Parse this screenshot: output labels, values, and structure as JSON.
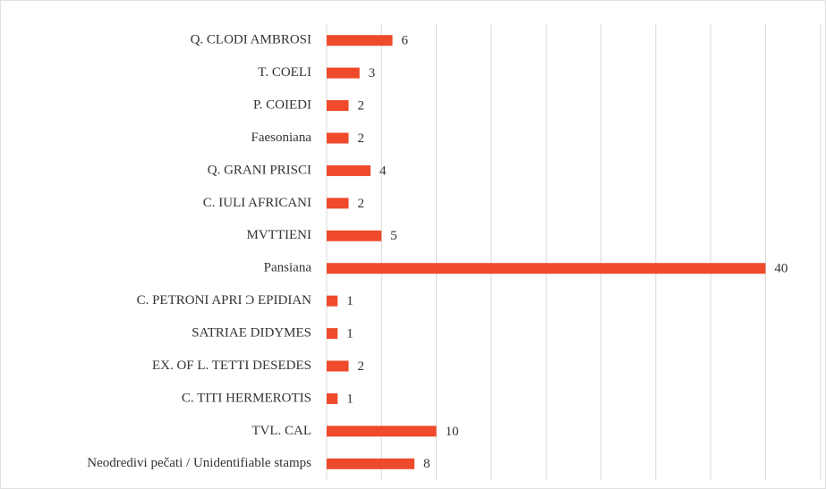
{
  "chart_data": {
    "type": "barh",
    "categories": [
      "Q. CLODI AMBROSI",
      "T. COELI",
      "P. COIEDI",
      "Faesoniana",
      "Q. GRANI PRISCI",
      "C. IULI AFRICANI",
      "MVTTIENI",
      "Pansiana",
      "C. PETRONI APRI Ɔ EPIDIAN",
      "SATRIAE DIDYMES",
      "EX. OF L. TETTI DESEDES",
      "C. TITI HERMEROTIS",
      "TVL. CAL",
      "Neodredivi pečati / Unidentifiable stamps"
    ],
    "values": [
      6,
      3,
      2,
      2,
      4,
      2,
      5,
      40,
      1,
      1,
      2,
      1,
      10,
      8
    ],
    "color": "#ee4a2b",
    "xlim": [
      0,
      45
    ],
    "xticks": [
      0,
      5,
      10,
      15,
      20,
      25,
      30,
      35,
      40,
      45
    ],
    "grid": true
  }
}
